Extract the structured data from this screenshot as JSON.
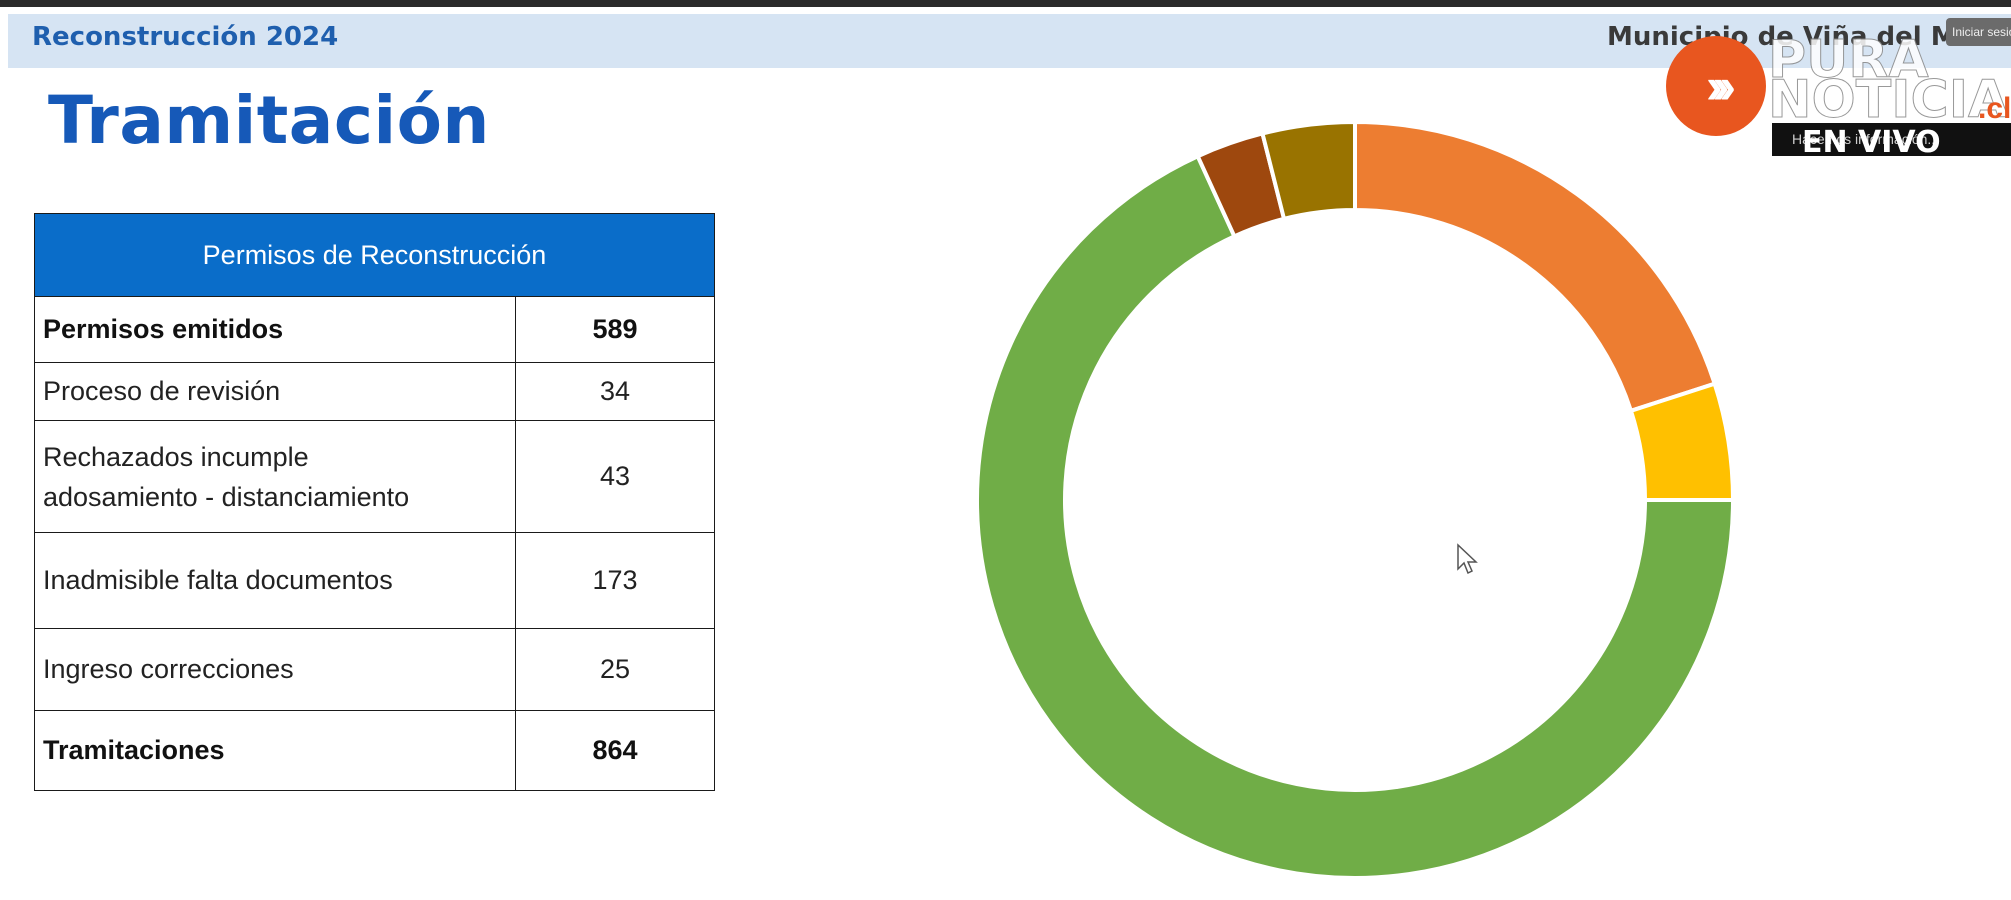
{
  "header": {
    "left_title": "Reconstrucción 2024",
    "right_title": "Municipio de Viña del Mar"
  },
  "page_title": "Tramitación",
  "table": {
    "header": "Permisos de Reconstrucción",
    "rows": [
      {
        "label": "Permisos emitidos",
        "value": "589",
        "bold": true
      },
      {
        "label": "Proceso de revisión",
        "value": "34",
        "bold": false
      },
      {
        "label": "Rechazados incumple adosamiento - distanciamiento",
        "value": "43",
        "bold": false
      },
      {
        "label": "Inadmisible falta documentos",
        "value": "173",
        "bold": false
      },
      {
        "label": "Ingreso correcciones",
        "value": "25",
        "bold": false
      },
      {
        "label": "Tramitaciones",
        "value": "864",
        "bold": true
      }
    ]
  },
  "chart_data": {
    "type": "pie",
    "donut": true,
    "slices": [
      {
        "value": 173,
        "color": "#ed7d31"
      },
      {
        "value": 43,
        "color": "#ffc000"
      },
      {
        "value": 589,
        "color": "#70ad47"
      },
      {
        "value": 25,
        "color": "#9e480e"
      },
      {
        "value": 34,
        "color": "#997300"
      }
    ]
  },
  "overlay": {
    "logo_line1": "PURA",
    "logo_line2": "NOTICIA",
    "logo_suffix": ".cl",
    "tagline": "Hacemos información...",
    "live_label": "EN VIVO",
    "session_button": "Iniciar sesión"
  },
  "colors": {
    "header_band": "#d6e4f3",
    "title_blue": "#1659b8",
    "table_header": "#0a6dc9",
    "brand_orange": "#e8561f"
  },
  "icons": [
    "cursor-icon",
    "pura-noticia-logo"
  ]
}
